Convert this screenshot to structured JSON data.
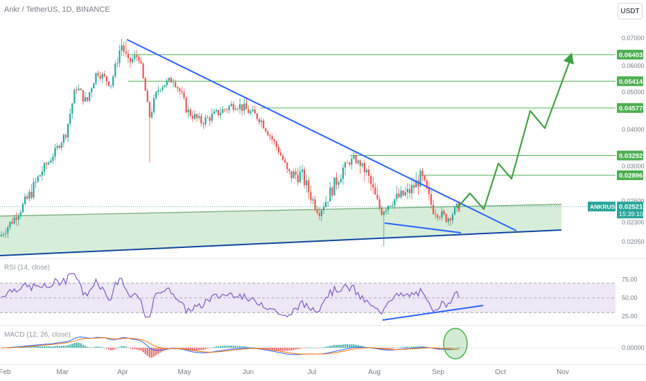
{
  "header": {
    "title": "Ankr / TetherUS, 1D, BINANCE",
    "currency": "USDT"
  },
  "colors": {
    "up": "#26a69a",
    "down": "#ef5350",
    "trend": "#2962ff",
    "target": "#4caf50",
    "projection": "#43a047",
    "channel_fill": "#c8e6c9",
    "channel_upper": "#7cb07c",
    "channel_lower": "#0d47a1",
    "rsi_line": "#7e57c2",
    "rsi_band": "#ede7f6",
    "macd_line": "#2962ff",
    "signal_line": "#ff6d00",
    "axis_text": "#787b86"
  },
  "chart_data": [
    {
      "type": "candlestick",
      "title": "Ankr / TetherUS, 1D, BINANCE",
      "x_ticks": [
        "Feb",
        "Mar",
        "Apr",
        "May",
        "Jun",
        "Jul",
        "Aug",
        "Sep",
        "Oct",
        "Nov"
      ],
      "y_ticks": [
        0.07,
        0.06,
        0.05,
        0.04,
        0.03,
        0.026,
        0.023,
        0.0205
      ],
      "y_tick_labels": [
        "0.07000",
        "0.06000",
        "0.05000",
        "0.04000",
        "0.03000",
        "0.02600",
        "0.02300",
        "0.02050"
      ],
      "price_labels": [
        {
          "label": "0.06403",
          "value": 0.06403
        },
        {
          "label": "0.05414",
          "value": 0.05414
        },
        {
          "label": "0.04577",
          "value": 0.04577
        },
        {
          "label": "0.03292",
          "value": 0.03292
        },
        {
          "label": "0.02896",
          "value": 0.02896
        }
      ],
      "symbol_tag": "ANKRUSDT",
      "last_price": "0.02521",
      "countdown": "15:39:10",
      "grid": false
    },
    {
      "type": "line",
      "title": "RSI (14, close)",
      "y_ticks": [
        75,
        50,
        25
      ],
      "y_tick_labels": [
        "75.00",
        "50.00",
        "25.00"
      ],
      "band": [
        30,
        70
      ],
      "grid": false
    },
    {
      "type": "bar",
      "title": "MACD (12, 26, close)",
      "y_ticks": [
        0
      ],
      "y_tick_labels": [
        "0.00000"
      ],
      "series": [
        "histogram",
        "macd",
        "signal"
      ],
      "grid": false
    }
  ]
}
